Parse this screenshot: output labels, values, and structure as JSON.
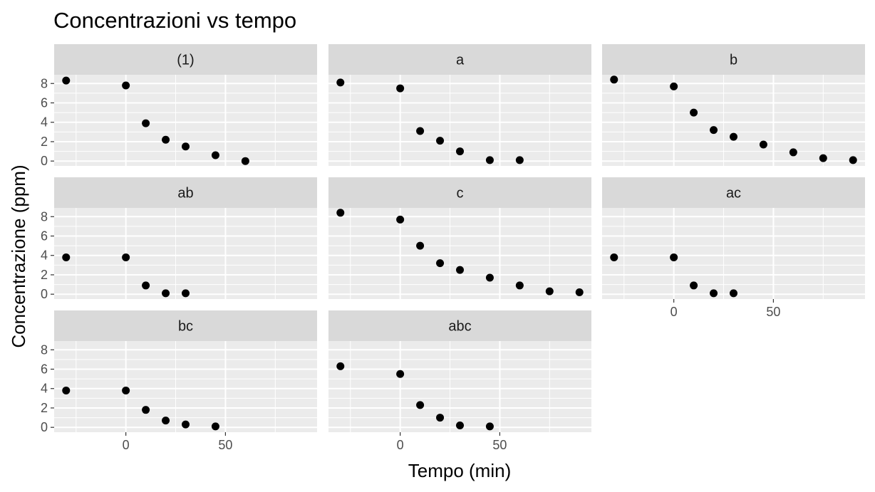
{
  "chart_data": {
    "type": "scatter",
    "title": "Concentrazioni vs tempo",
    "xlabel": "Tempo (min)",
    "ylabel": "Concentrazione (ppm)",
    "xlim": [
      -36,
      96
    ],
    "ylim": [
      -0.5,
      8.9
    ],
    "x_ticks": [
      0,
      50
    ],
    "y_ticks": [
      0,
      2,
      4,
      6,
      8
    ],
    "grid": true,
    "legend": "none",
    "colors": {
      "panel_background": "#ebebeb",
      "strip_background": "#d9d9d9",
      "grid_line": "#ffffff",
      "point": "#000000",
      "tick": "#333333"
    },
    "panels": [
      {
        "label": "(1)",
        "points": [
          [
            -30,
            8.3
          ],
          [
            0,
            7.8
          ],
          [
            10,
            3.9
          ],
          [
            20,
            2.2
          ],
          [
            30,
            1.5
          ],
          [
            45,
            0.6
          ],
          [
            60,
            0.0
          ]
        ]
      },
      {
        "label": "a",
        "points": [
          [
            -30,
            8.1
          ],
          [
            0,
            7.5
          ],
          [
            10,
            3.1
          ],
          [
            20,
            2.1
          ],
          [
            30,
            1.0
          ],
          [
            45,
            0.1
          ],
          [
            60,
            0.1
          ]
        ]
      },
      {
        "label": "b",
        "points": [
          [
            -30,
            8.4
          ],
          [
            0,
            7.7
          ],
          [
            10,
            5.0
          ],
          [
            20,
            3.2
          ],
          [
            30,
            2.5
          ],
          [
            45,
            1.7
          ],
          [
            60,
            0.9
          ],
          [
            75,
            0.3
          ],
          [
            90,
            0.1
          ]
        ]
      },
      {
        "label": "ab",
        "points": [
          [
            -30,
            3.8
          ],
          [
            0,
            3.8
          ],
          [
            10,
            0.9
          ],
          [
            20,
            0.1
          ],
          [
            30,
            0.1
          ]
        ]
      },
      {
        "label": "c",
        "points": [
          [
            -30,
            8.4
          ],
          [
            0,
            7.7
          ],
          [
            10,
            5.0
          ],
          [
            20,
            3.2
          ],
          [
            30,
            2.5
          ],
          [
            45,
            1.7
          ],
          [
            60,
            0.9
          ],
          [
            75,
            0.3
          ],
          [
            90,
            0.2
          ]
        ]
      },
      {
        "label": "ac",
        "points": [
          [
            -30,
            3.8
          ],
          [
            0,
            3.8
          ],
          [
            10,
            0.9
          ],
          [
            20,
            0.1
          ],
          [
            30,
            0.1
          ]
        ]
      },
      {
        "label": "bc",
        "points": [
          [
            -30,
            3.8
          ],
          [
            0,
            3.8
          ],
          [
            10,
            1.8
          ],
          [
            20,
            0.7
          ],
          [
            30,
            0.3
          ],
          [
            45,
            0.1
          ]
        ]
      },
      {
        "label": "abc",
        "points": [
          [
            -30,
            6.3
          ],
          [
            0,
            5.5
          ],
          [
            10,
            2.3
          ],
          [
            20,
            1.0
          ],
          [
            30,
            0.2
          ],
          [
            45,
            0.1
          ]
        ]
      }
    ]
  }
}
